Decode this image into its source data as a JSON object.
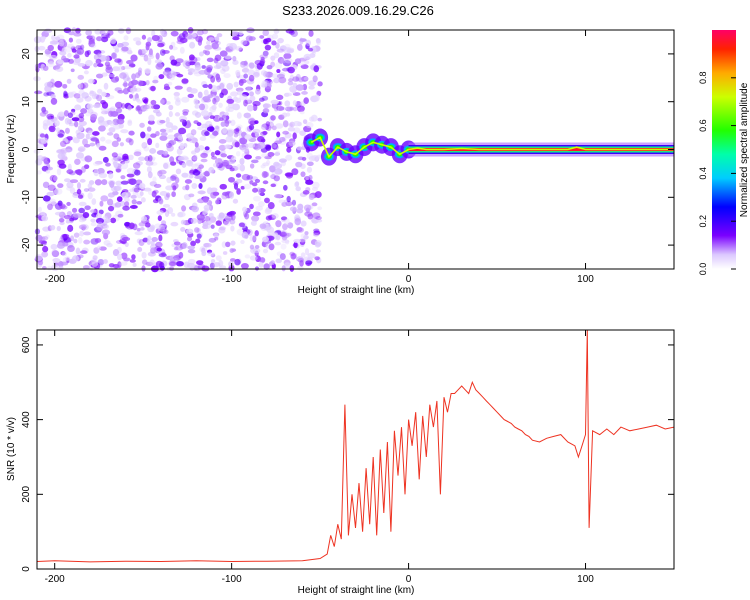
{
  "title": "S233.2026.009.16.29.C26",
  "colors": {
    "snr_line": "#ee3322",
    "spectrogram_low": "#7a00ff",
    "spectrogram_high": "#ff0033"
  },
  "chart_data": [
    {
      "type": "heatmap",
      "xlabel": "Height of straight line (km)",
      "ylabel": "Frequency (Hz)",
      "xlim": [
        -210,
        150
      ],
      "ylim": [
        -25,
        25
      ],
      "xticks": [
        -200,
        -100,
        0,
        100
      ],
      "yticks": [
        -20,
        -10,
        0,
        10,
        20
      ],
      "grid": false,
      "colorbar": {
        "label": "Normalized spectral amplitude",
        "range": [
          0,
          1
        ],
        "ticks": [
          0.0,
          0.2,
          0.4,
          0.6,
          0.8
        ],
        "tick_labels": [
          "0.0",
          "0.2",
          "0.4",
          "0.6",
          "0.8"
        ],
        "colormap": "rainbow"
      },
      "regions": [
        {
          "x_range": [
            -210,
            -50
          ],
          "description_values": {
            "amplitude": [
              0.0,
              0.25
            ],
            "freq_range": [
              -25,
              25
            ]
          }
        },
        {
          "x_range": [
            -50,
            0
          ],
          "description_values": {
            "amplitude": [
              0.2,
              0.6
            ],
            "freq_range": [
              -4,
              4
            ]
          }
        },
        {
          "x_range": [
            0,
            150
          ],
          "description_values": {
            "amplitude": [
              0.8,
              1.0
            ],
            "freq_center": 0,
            "freq_halfwidth": 0.6
          }
        }
      ],
      "peak_frequency_track": {
        "x": [
          -55,
          -50,
          -45,
          -40,
          -35,
          -30,
          -25,
          -20,
          -15,
          -10,
          -5,
          0,
          5,
          10,
          20,
          30,
          40,
          50,
          60,
          70,
          80,
          90,
          95,
          100,
          110,
          120,
          130,
          140,
          150
        ],
        "y": [
          1.5,
          2.5,
          -1.5,
          0.5,
          -0.5,
          -1.0,
          0.5,
          1.5,
          1.0,
          0.5,
          -1.0,
          0.0,
          0.3,
          0.0,
          0.0,
          0.2,
          0.0,
          0.0,
          0.0,
          0.0,
          0.0,
          0.0,
          0.5,
          0.0,
          0.0,
          0.0,
          0.0,
          0.0,
          0.0
        ]
      }
    },
    {
      "type": "line",
      "xlabel": "Height of straight line (km)",
      "ylabel": "SNR (10 * v/v)",
      "xlim": [
        -210,
        150
      ],
      "ylim": [
        0,
        640
      ],
      "xticks": [
        -200,
        -100,
        0,
        100
      ],
      "yticks": [
        0,
        200,
        400,
        600
      ],
      "grid": false,
      "series": [
        {
          "x": [
            -210,
            -200,
            -180,
            -160,
            -140,
            -120,
            -100,
            -80,
            -60,
            -50,
            -46,
            -44,
            -42,
            -40,
            -38,
            -36,
            -34,
            -32,
            -30,
            -28,
            -26,
            -24,
            -22,
            -20,
            -18,
            -16,
            -14,
            -12,
            -10,
            -8,
            -6,
            -4,
            -2,
            0,
            2,
            4,
            6,
            8,
            10,
            12,
            14,
            16,
            18,
            20,
            22,
            24,
            26,
            28,
            30,
            32,
            34,
            36,
            38,
            40,
            42,
            44,
            46,
            48,
            50,
            52,
            54,
            56,
            58,
            60,
            62,
            64,
            66,
            68,
            70,
            74,
            78,
            82,
            86,
            90,
            94,
            96,
            98,
            100,
            101,
            102,
            104,
            108,
            112,
            116,
            120,
            125,
            130,
            135,
            140,
            145,
            150
          ],
          "y": [
            20,
            22,
            19,
            21,
            20,
            22,
            20,
            21,
            22,
            28,
            40,
            90,
            60,
            120,
            80,
            440,
            90,
            200,
            110,
            230,
            100,
            270,
            120,
            300,
            90,
            320,
            150,
            340,
            100,
            370,
            250,
            380,
            200,
            400,
            330,
            420,
            240,
            410,
            300,
            440,
            380,
            450,
            200,
            460,
            420,
            470,
            470,
            480,
            490,
            480,
            470,
            500,
            480,
            470,
            460,
            450,
            440,
            430,
            420,
            410,
            400,
            395,
            390,
            380,
            375,
            370,
            360,
            355,
            345,
            340,
            350,
            355,
            360,
            340,
            330,
            300,
            330,
            360,
            640,
            110,
            370,
            360,
            375,
            360,
            380,
            370,
            375,
            380,
            385,
            375,
            380
          ]
        }
      ]
    }
  ]
}
